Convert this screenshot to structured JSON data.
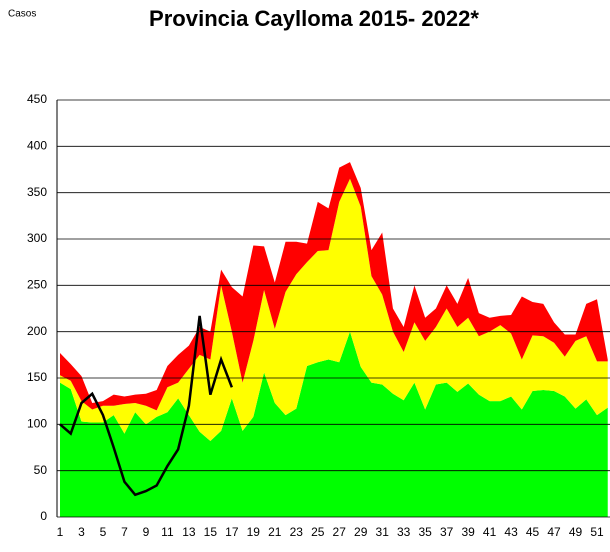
{
  "chart_data": {
    "type": "stacked-area-line",
    "title": "Provincia Caylloma 2015- 2022*",
    "y_label": "Casos",
    "categories": [
      1,
      null,
      3,
      null,
      5,
      null,
      7,
      null,
      9,
      null,
      11,
      null,
      13,
      null,
      15,
      null,
      17,
      null,
      19,
      null,
      21,
      null,
      23,
      null,
      25,
      null,
      27,
      null,
      29,
      null,
      31,
      null,
      33,
      null,
      35,
      null,
      37,
      null,
      39,
      null,
      41,
      null,
      43,
      null,
      45,
      null,
      47,
      null,
      49,
      null,
      51,
      null
    ],
    "series": [
      {
        "kind": "area",
        "color": "#00ff00",
        "values": [
          145,
          138,
          103,
          102,
          102,
          110,
          90,
          113,
          100,
          108,
          113,
          128,
          110,
          92,
          82,
          93,
          128,
          93,
          108,
          156,
          123,
          110,
          117,
          163,
          167,
          170,
          167,
          200,
          162,
          145,
          143,
          133,
          126,
          145,
          116,
          143,
          145,
          135,
          144,
          132,
          125,
          125,
          130,
          116,
          136,
          137,
          136,
          130,
          117,
          127,
          110,
          118
        ]
      },
      {
        "kind": "area",
        "color": "#ffff00",
        "values": [
          8,
          9,
          22,
          14,
          18,
          10,
          32,
          10,
          20,
          7,
          27,
          17,
          50,
          83,
          88,
          157,
          72,
          52,
          82,
          89,
          80,
          133,
          145,
          112,
          120,
          118,
          173,
          165,
          173,
          115,
          97,
          67,
          52,
          65,
          74,
          62,
          80,
          70,
          71,
          63,
          75,
          82,
          68,
          54,
          60,
          58,
          52,
          43,
          73,
          68,
          58,
          50
        ]
      },
      {
        "kind": "area",
        "color": "#ff0000",
        "values": [
          24,
          18,
          27,
          7,
          5,
          12,
          8,
          9,
          13,
          22,
          23,
          30,
          25,
          30,
          30,
          17,
          48,
          93,
          103,
          47,
          50,
          54,
          35,
          20,
          53,
          45,
          37,
          18,
          20,
          28,
          67,
          25,
          27,
          40,
          25,
          20,
          25,
          25,
          43,
          25,
          15,
          10,
          20,
          68,
          36,
          35,
          22,
          24,
          7,
          35,
          67,
          2
        ]
      },
      {
        "kind": "line",
        "color": "#000000",
        "values": [
          100,
          90,
          123,
          133,
          110,
          75,
          38,
          24,
          28,
          34,
          55,
          73,
          120,
          217,
          132,
          170,
          140,
          null,
          null,
          null,
          null,
          null,
          null,
          null,
          null,
          null,
          null,
          null,
          null,
          null,
          null,
          null,
          null,
          null,
          null,
          null,
          null,
          null,
          null,
          null,
          null,
          null,
          null,
          null,
          null,
          null,
          null,
          null,
          null,
          null,
          null,
          null
        ]
      }
    ],
    "ylim": [
      0,
      450
    ],
    "yticks": [
      0,
      50,
      100,
      150,
      200,
      250,
      300,
      350,
      400,
      450
    ],
    "grid": true
  }
}
